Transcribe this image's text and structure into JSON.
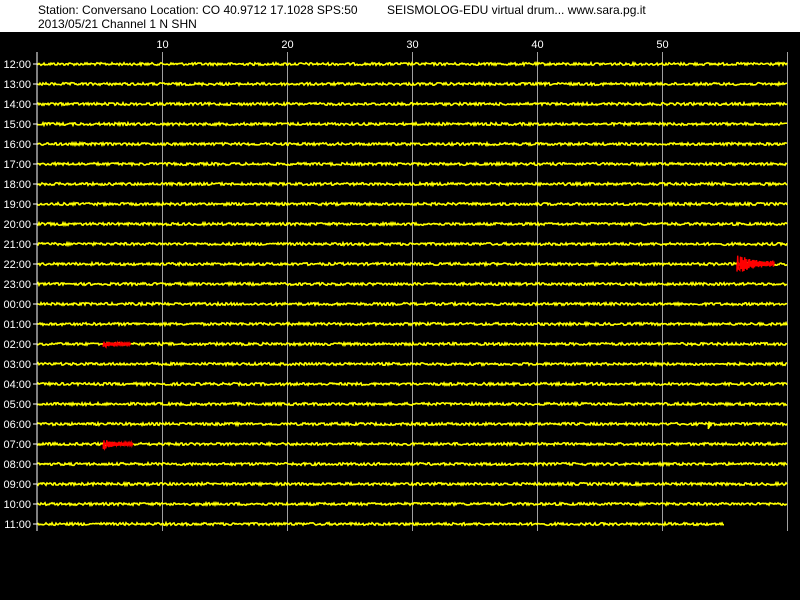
{
  "header": {
    "station_line": "Station: Conversano Location: CO 40.9712 17.1028 SPS:50",
    "date_line": "2013/05/21  Channel 1 N SHN",
    "app_line": "SEISMOLOG-EDU virtual drum... www.sara.pg.it"
  },
  "chart_data": {
    "type": "line",
    "title": "",
    "xlabel": "",
    "ylabel": "",
    "xlim": [
      0,
      60
    ],
    "x_ticks": [
      10,
      20,
      30,
      40,
      50
    ],
    "grid": true,
    "row_labels": [
      "12:00",
      "13:00",
      "14:00",
      "15:00",
      "16:00",
      "17:00",
      "18:00",
      "19:00",
      "20:00",
      "21:00",
      "22:00",
      "23:00",
      "00:00",
      "01:00",
      "02:00",
      "03:00",
      "04:00",
      "05:00",
      "06:00",
      "07:00",
      "08:00",
      "09:00",
      "10:00",
      "11:00"
    ],
    "last_row_end_minute": 55,
    "events": [
      {
        "hour_label": "22:00",
        "start_minute": 56.0,
        "end_minute": 59.0,
        "peak_amplitude": 11,
        "color": "#ff0000"
      },
      {
        "hour_label": "02:00",
        "start_minute": 5.3,
        "end_minute": 7.5,
        "peak_amplitude": 4,
        "color": "#ff0000"
      },
      {
        "hour_label": "07:00",
        "start_minute": 5.3,
        "end_minute": 7.7,
        "peak_amplitude": 6,
        "color": "#ff0000"
      },
      {
        "hour_label": "06:00",
        "start_minute": 53.7,
        "end_minute": 54.0,
        "peak_amplitude": 7,
        "color": "#ffff00"
      }
    ],
    "colors": {
      "background": "#000000",
      "trace": "#ffff00",
      "event": "#ff0000",
      "grid": "#a0a0a0",
      "labels": "#ffffff",
      "header_band": "#ffffff",
      "header_text": "#000000"
    }
  }
}
